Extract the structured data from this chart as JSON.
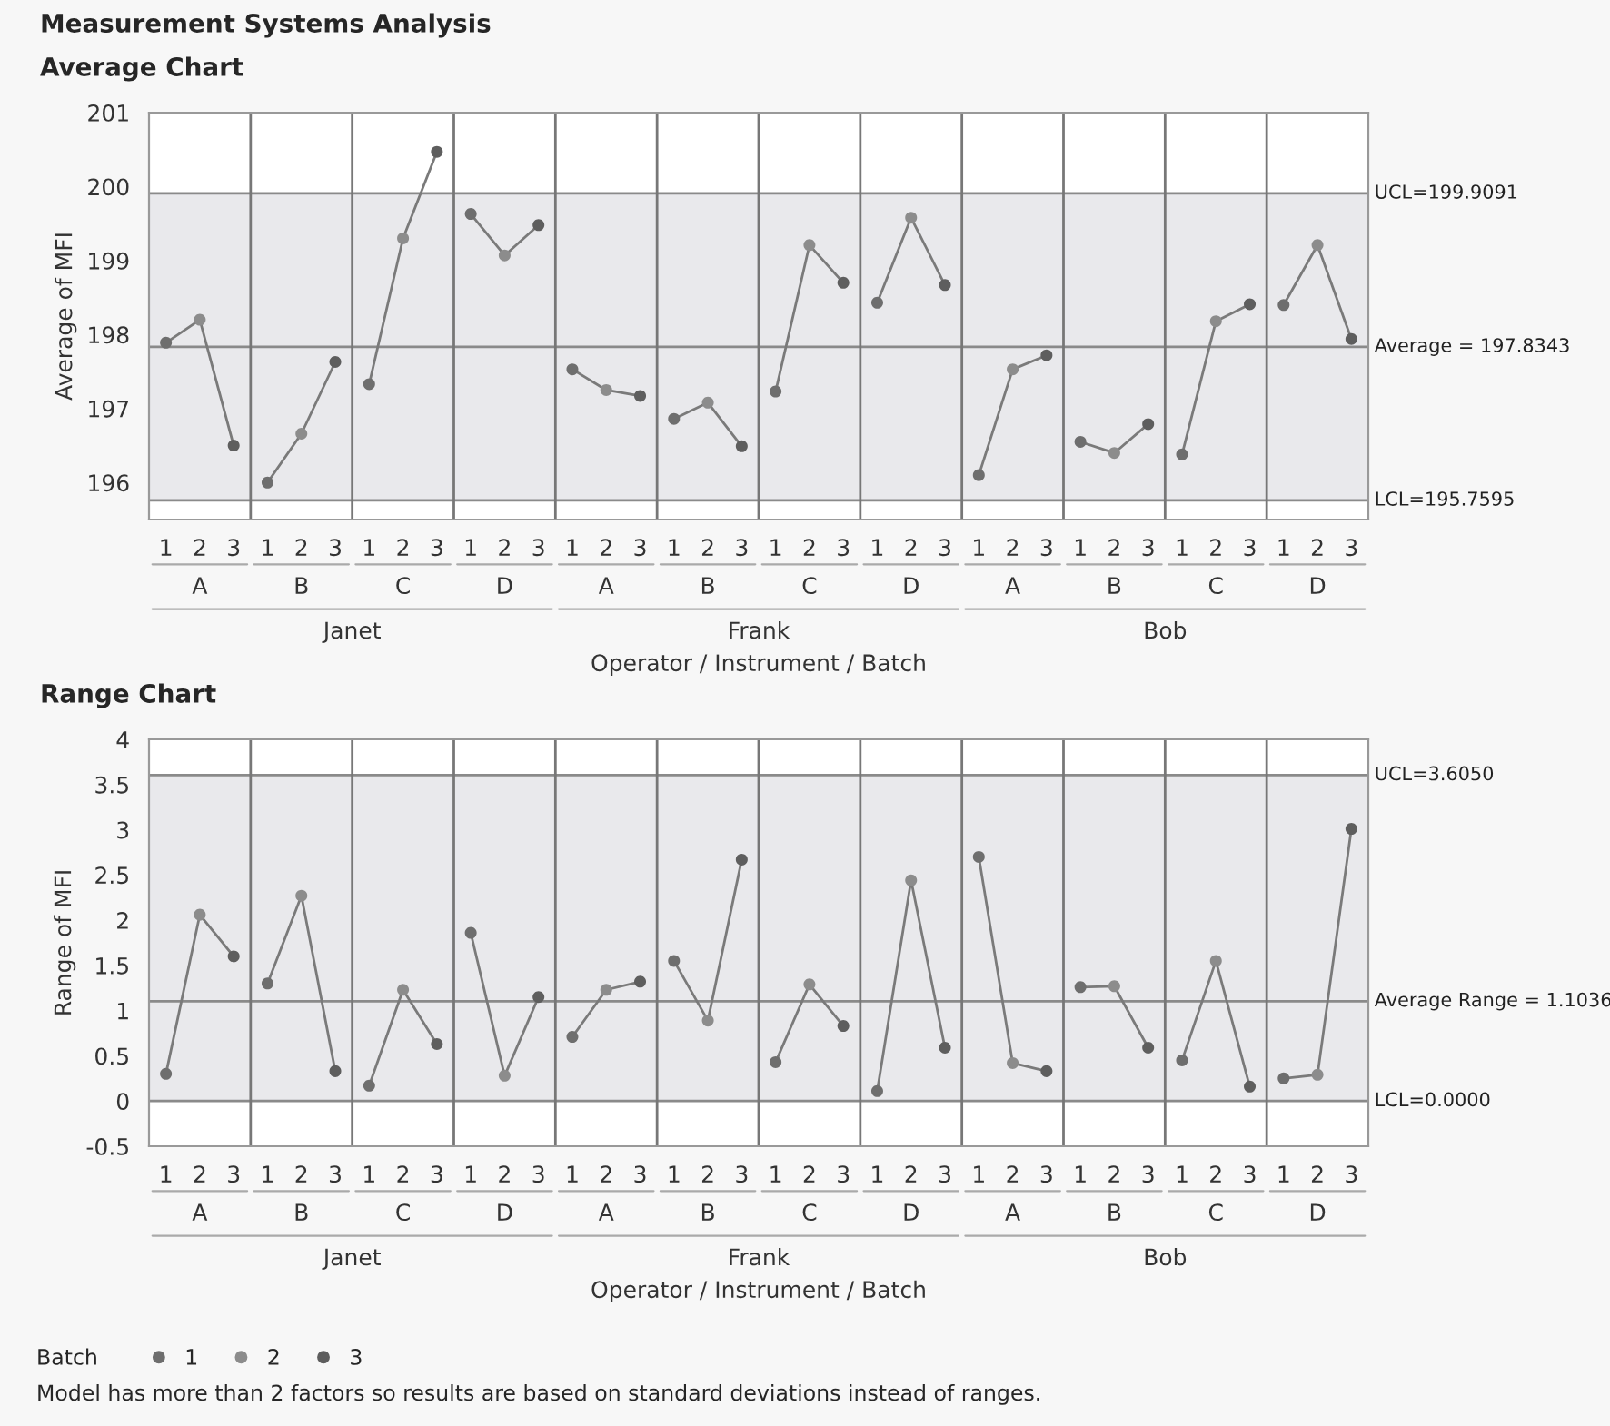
{
  "chart_data": [
    {
      "type": "scatter",
      "title": "Average Chart",
      "ylabel": "Average of MFI",
      "xlabel": "Operator / Instrument / Batch",
      "categories": [
        "1",
        "2",
        "3",
        "1",
        "2",
        "3",
        "1",
        "2",
        "3",
        "1",
        "2",
        "3",
        "1",
        "2",
        "3",
        "1",
        "2",
        "3",
        "1",
        "2",
        "3",
        "1",
        "2",
        "3",
        "1",
        "2",
        "3",
        "1",
        "2",
        "3",
        "1",
        "2",
        "3",
        "1",
        "2",
        "3"
      ],
      "series": [
        {
          "type": "line",
          "marker": "none",
          "color": "#7a7a7a",
          "values": [
            197.89,
            198.2,
            196.5,
            196.0,
            196.66,
            197.63,
            197.33,
            199.3,
            200.47,
            199.63,
            199.07,
            199.48,
            197.53,
            197.25,
            197.17,
            196.86,
            197.08,
            196.49,
            197.23,
            199.21,
            198.7,
            198.43,
            199.58,
            198.67,
            196.1,
            197.53,
            197.72,
            196.55,
            196.4,
            196.79,
            196.38,
            198.18,
            198.41,
            198.4,
            199.21,
            197.94
          ]
        },
        {
          "color": "#6e6e6e",
          "values": [
            197.89,
            null,
            null,
            196.0,
            null,
            null,
            197.33,
            null,
            null,
            199.63,
            null,
            null,
            197.53,
            null,
            null,
            196.86,
            null,
            null,
            197.23,
            null,
            null,
            198.43,
            null,
            null,
            196.1,
            null,
            null,
            196.55,
            null,
            null,
            196.38,
            null,
            null,
            198.4,
            null,
            null
          ]
        },
        {
          "color": "#8c8c8c",
          "values": [
            null,
            198.2,
            null,
            null,
            196.66,
            null,
            null,
            199.3,
            null,
            null,
            199.07,
            null,
            null,
            197.25,
            null,
            null,
            197.08,
            null,
            null,
            199.21,
            null,
            null,
            199.58,
            null,
            null,
            197.53,
            null,
            null,
            196.4,
            null,
            null,
            198.18,
            null,
            null,
            199.21,
            null
          ]
        },
        {
          "color": "#5e5e5e",
          "values": [
            null,
            null,
            196.5,
            null,
            null,
            197.63,
            null,
            null,
            200.47,
            null,
            null,
            199.48,
            null,
            null,
            197.17,
            null,
            null,
            196.49,
            null,
            null,
            198.7,
            null,
            null,
            198.67,
            null,
            null,
            197.72,
            null,
            null,
            196.79,
            null,
            null,
            198.41,
            null,
            null,
            197.94
          ]
        }
      ],
      "ylim": [
        195.5,
        201
      ],
      "yticks": [
        196,
        197,
        198,
        199,
        200,
        201
      ],
      "marker": "circle",
      "ref_lines": [
        {
          "axis": "y",
          "value": 199.9091,
          "label": "UCL=199.9091",
          "color": "#8a8a8a"
        },
        {
          "axis": "y",
          "value": 197.8343,
          "label": "Average = 197.8343",
          "color": "#8a8a8a"
        },
        {
          "axis": "y",
          "value": 195.7595,
          "label": "LCL=195.7595",
          "color": "#8a8a8a"
        }
      ],
      "bands": [
        {
          "axis": "y",
          "from": 195.7595,
          "to": 199.9091,
          "color": "#e9e9ec"
        }
      ],
      "annotations": [
        "A",
        "B",
        "C",
        "D",
        "A",
        "B",
        "C",
        "D",
        "A",
        "B",
        "C",
        "D",
        "Janet",
        "Frank",
        "Bob",
        "Measurement Systems Analysis"
      ]
    },
    {
      "type": "scatter",
      "title": "Range Chart",
      "ylabel": "Range of MFI",
      "xlabel": "Operator / Instrument / Batch",
      "categories": [
        "1",
        "2",
        "3",
        "1",
        "2",
        "3",
        "1",
        "2",
        "3",
        "1",
        "2",
        "3",
        "1",
        "2",
        "3",
        "1",
        "2",
        "3",
        "1",
        "2",
        "3",
        "1",
        "2",
        "3",
        "1",
        "2",
        "3",
        "1",
        "2",
        "3",
        "1",
        "2",
        "3",
        "1",
        "2",
        "3"
      ],
      "series": [
        {
          "type": "line",
          "marker": "none",
          "color": "#7a7a7a",
          "values": [
            0.3,
            2.06,
            1.6,
            1.3,
            2.27,
            0.33,
            0.17,
            1.23,
            0.63,
            1.86,
            0.28,
            1.15,
            0.71,
            1.23,
            1.32,
            1.55,
            0.89,
            2.67,
            0.43,
            1.29,
            0.83,
            0.11,
            2.44,
            0.59,
            2.7,
            0.42,
            0.33,
            1.26,
            1.27,
            0.59,
            0.45,
            1.55,
            0.16,
            0.25,
            0.29,
            3.01
          ]
        },
        {
          "name": "1",
          "color": "#6e6e6e",
          "values": [
            0.3,
            null,
            null,
            1.3,
            null,
            null,
            0.17,
            null,
            null,
            1.86,
            null,
            null,
            0.71,
            null,
            null,
            1.55,
            null,
            null,
            0.43,
            null,
            null,
            0.11,
            null,
            null,
            2.7,
            null,
            null,
            1.26,
            null,
            null,
            0.45,
            null,
            null,
            0.25,
            null,
            null
          ]
        },
        {
          "name": "2",
          "color": "#8c8c8c",
          "values": [
            null,
            2.06,
            null,
            null,
            2.27,
            null,
            null,
            1.23,
            null,
            null,
            0.28,
            null,
            null,
            1.23,
            null,
            null,
            0.89,
            null,
            null,
            1.29,
            null,
            null,
            2.44,
            null,
            null,
            0.42,
            null,
            null,
            1.27,
            null,
            null,
            1.55,
            null,
            null,
            0.29,
            null
          ]
        },
        {
          "name": "3",
          "color": "#5e5e5e",
          "values": [
            null,
            null,
            1.6,
            null,
            null,
            0.33,
            null,
            null,
            0.63,
            null,
            null,
            1.15,
            null,
            null,
            1.32,
            null,
            null,
            2.67,
            null,
            null,
            0.83,
            null,
            null,
            0.59,
            null,
            null,
            0.33,
            null,
            null,
            0.59,
            null,
            null,
            0.16,
            null,
            null,
            3.01
          ]
        }
      ],
      "ylim": [
        -0.5,
        4
      ],
      "yticks": [
        -0.5,
        0,
        0.5,
        1,
        1.5,
        2,
        2.5,
        3,
        3.5,
        4
      ],
      "marker": "circle",
      "legend": "bottom left",
      "legend_title": "Batch",
      "ref_lines": [
        {
          "axis": "y",
          "value": 3.605,
          "label": "UCL=3.6050",
          "color": "#8a8a8a"
        },
        {
          "axis": "y",
          "value": 1.1036,
          "label": "Average Range = 1.1036",
          "color": "#8a8a8a"
        },
        {
          "axis": "y",
          "value": 0.0,
          "label": "LCL=0.0000",
          "color": "#8a8a8a"
        }
      ],
      "bands": [
        {
          "axis": "y",
          "from": 0.0,
          "to": 3.605,
          "color": "#e9e9ec"
        }
      ],
      "annotations": [
        "A",
        "B",
        "C",
        "D",
        "A",
        "B",
        "C",
        "D",
        "A",
        "B",
        "C",
        "D",
        "Janet",
        "Frank",
        "Bob",
        "Model has more than 2 factors so results are based on standard deviations instead of ranges."
      ]
    }
  ]
}
